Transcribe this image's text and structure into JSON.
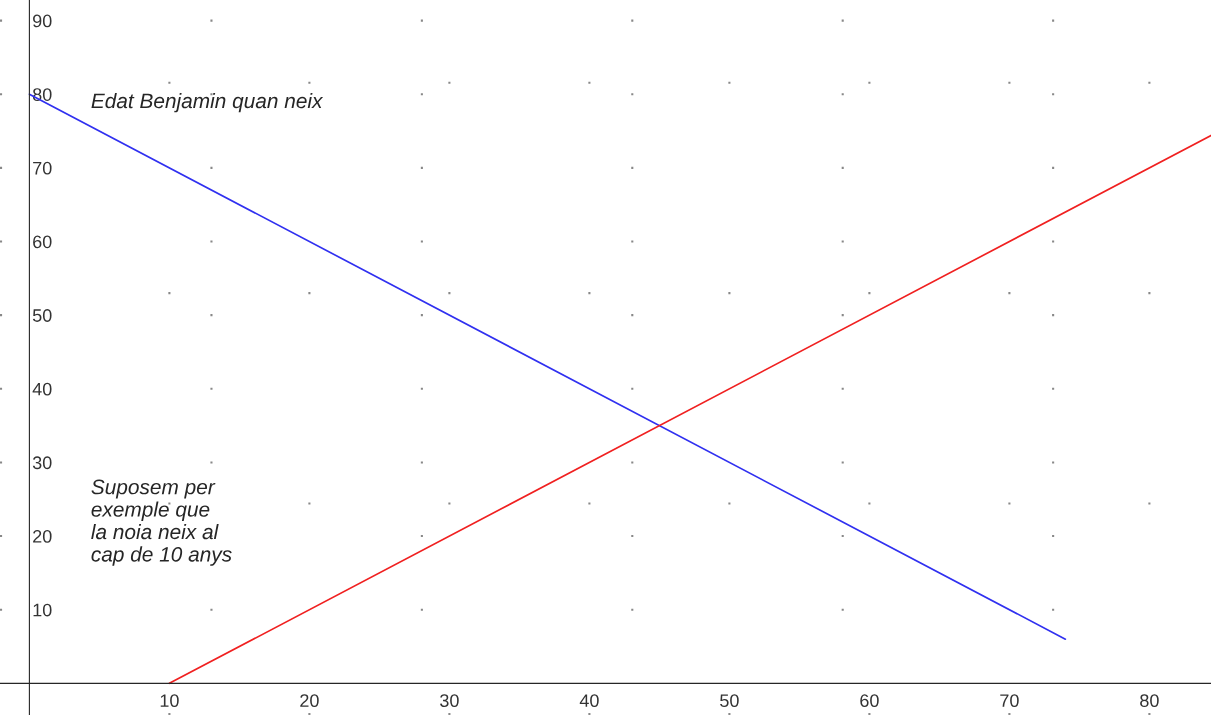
{
  "chart_data": {
    "type": "line",
    "annotations": [
      "Edat Benjamin quan neix",
      "Suposem per\nexemple que\nla noia neix al\ncap de 10 anys"
    ],
    "series": [
      {
        "color": "#3030f0",
        "x": [
          0,
          74
        ],
        "values": [
          80,
          6
        ]
      },
      {
        "color": "#f02020",
        "x": [
          10,
          84.4
        ],
        "values": [
          0,
          74.4
        ]
      }
    ],
    "xlim": [
      -2.1,
      84.4
    ],
    "ylim": [
      -4.3,
      92.8
    ],
    "xticks": [
      10,
      20,
      30,
      40,
      50,
      60,
      70,
      80
    ],
    "yticks": [
      10,
      20,
      30,
      40,
      50,
      60,
      70,
      80,
      90
    ],
    "grid": true,
    "line_style": "solid",
    "marker": "none"
  }
}
